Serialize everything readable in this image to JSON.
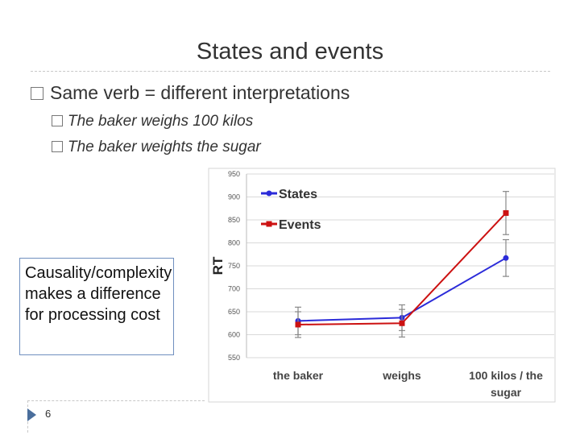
{
  "slide": {
    "title": "States and events",
    "bullet": "Same verb = different interpretations",
    "sub_bullets": [
      "The baker weighs 100 kilos",
      "The baker weights the sugar"
    ],
    "callout": "Causality/complexity makes a difference for processing cost",
    "page_number": "6"
  },
  "chart_data": {
    "type": "line",
    "ylabel": "RT",
    "ylim": [
      550,
      950
    ],
    "yticks": [
      550,
      600,
      650,
      700,
      750,
      800,
      850,
      900,
      950
    ],
    "categories": [
      "the baker",
      "weighs",
      "100 kilos / the sugar"
    ],
    "legend_position": "top-left",
    "series": [
      {
        "name": "States",
        "color": "#2b2bd9",
        "values": [
          630,
          637,
          767
        ],
        "errors": [
          30,
          28,
          40
        ]
      },
      {
        "name": "Events",
        "color": "#cc1111",
        "values": [
          622,
          625,
          865
        ],
        "errors": [
          28,
          30,
          47
        ]
      }
    ]
  }
}
